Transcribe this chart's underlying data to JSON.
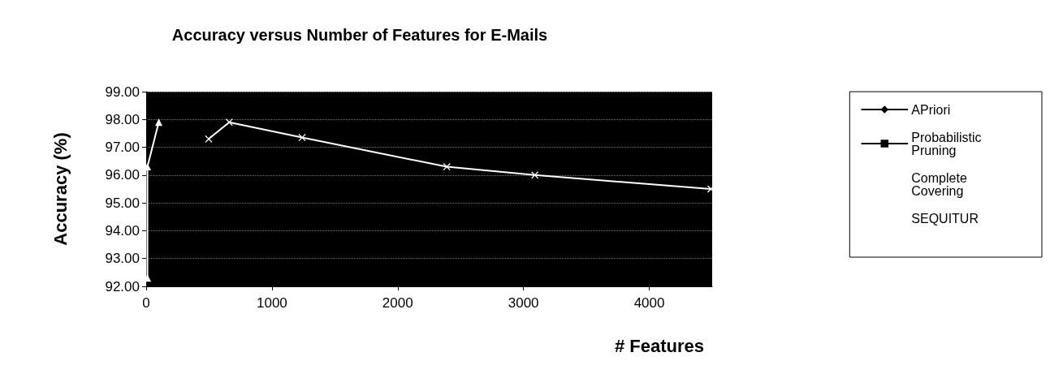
{
  "chart_data": {
    "type": "line",
    "title": "Accuracy versus Number of Features for E-Mails",
    "xlabel": "# Features",
    "ylabel": "Accuracy (%)",
    "xlim": [
      0,
      4500
    ],
    "xticks": [
      0,
      1000,
      2000,
      3000,
      4000
    ],
    "ylim": [
      92,
      99
    ],
    "yticks": [
      {
        "value": 92,
        "label": "92.00"
      },
      {
        "value": 93,
        "label": "93.00"
      },
      {
        "value": 94,
        "label": "94.00"
      },
      {
        "value": 95,
        "label": "95.00"
      },
      {
        "value": 96,
        "label": "96.00"
      },
      {
        "value": 97,
        "label": "97.00"
      },
      {
        "value": 98,
        "label": "98.00"
      },
      {
        "value": 99,
        "label": "99.00"
      }
    ],
    "grid": "y",
    "legend": "right",
    "series": [
      {
        "name": "APriori",
        "color": "#000000",
        "marker": "diamond"
      },
      {
        "name": "Probabilistic Pruning",
        "color": "#000000",
        "marker": "square"
      },
      {
        "name": "Complete Covering",
        "color": "#ffffff",
        "marker": "triangle",
        "x": [
          10,
          10,
          100
        ],
        "values": [
          92.3,
          96.3,
          97.9
        ]
      },
      {
        "name": "SEQUITUR",
        "color": "#ffffff",
        "marker": "cross",
        "x": [
          497,
          660,
          1240,
          2390,
          3090,
          4490
        ],
        "values": [
          97.3,
          97.9,
          97.35,
          96.3,
          96.0,
          95.5
        ]
      }
    ]
  }
}
